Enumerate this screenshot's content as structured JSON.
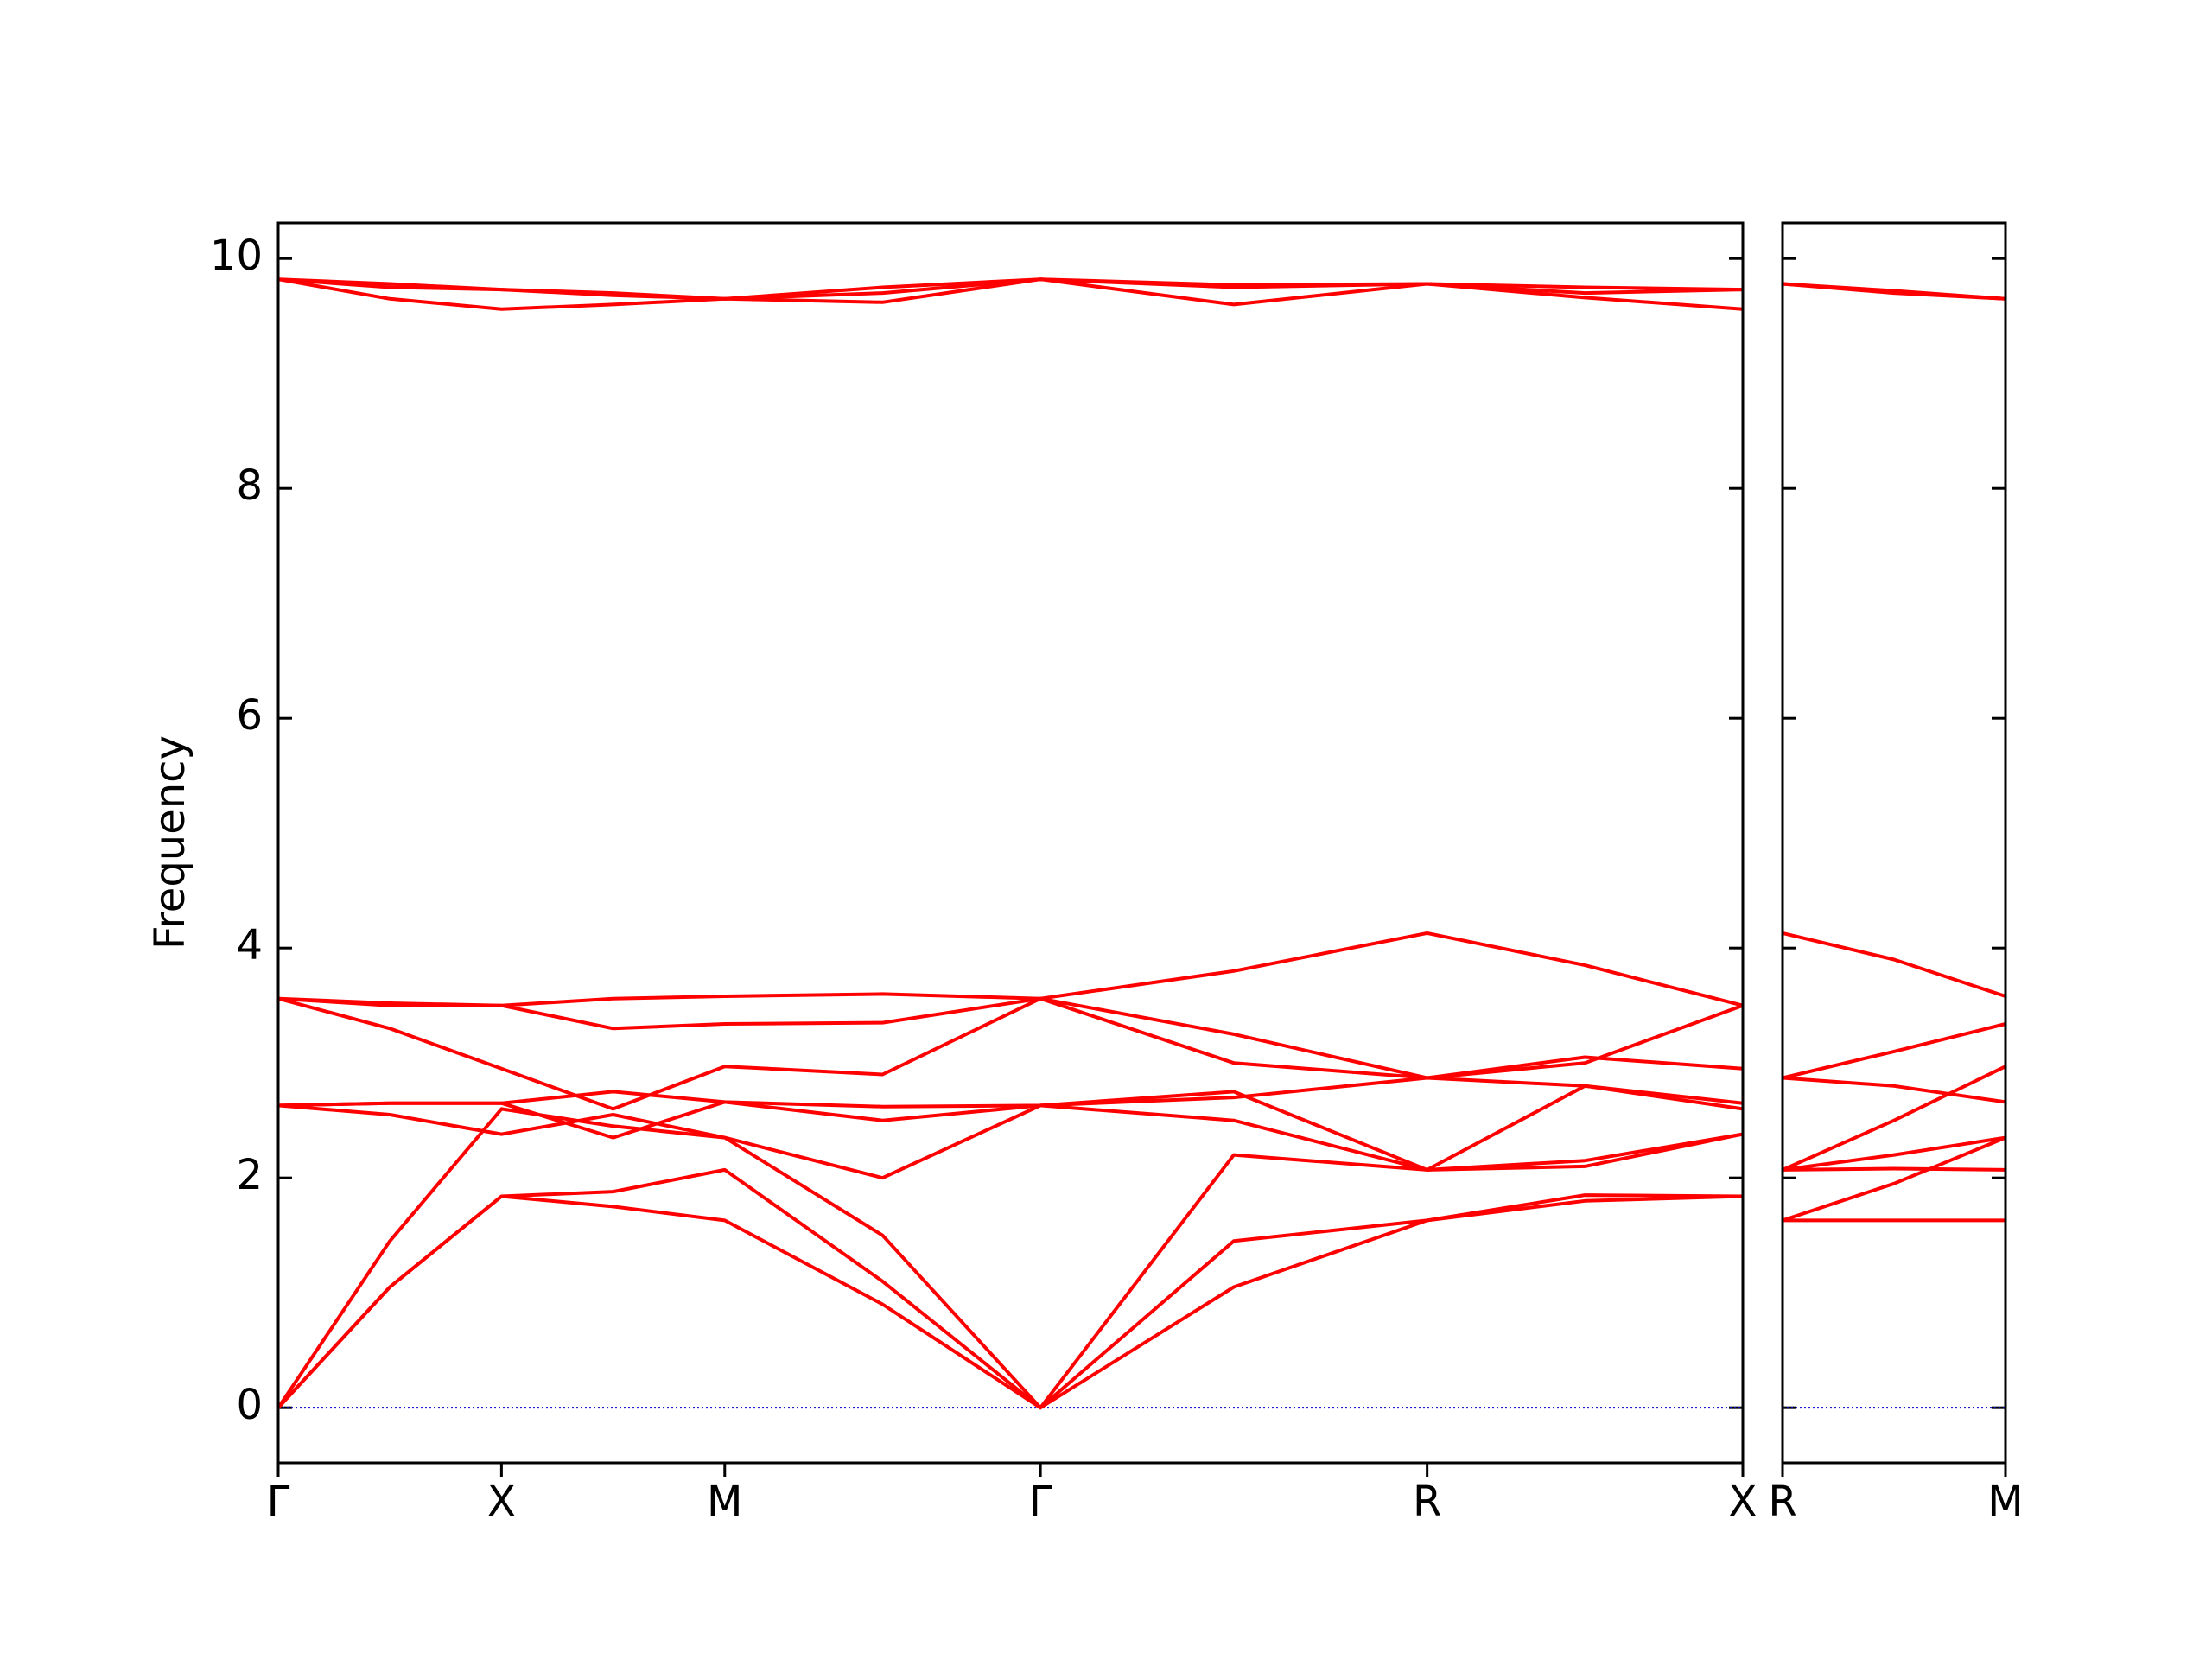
{
  "chart_data": [
    {
      "type": "line",
      "ylabel": "Frequency",
      "color": "#ff0000",
      "zero_line": 0,
      "zero_line_color": "#0000cc",
      "show_ytick_labels": true,
      "x": [
        0,
        0.5,
        1,
        1.5,
        2,
        2.707,
        3.414,
        4.28,
        5.146,
        5.853,
        6.56
      ],
      "xlim": [
        0,
        6.56
      ],
      "ylim": [
        -0.48,
        10.31
      ],
      "yticks": [
        0,
        2,
        4,
        6,
        8,
        10
      ],
      "xticks": [
        {
          "value": 0,
          "label": "Γ"
        },
        {
          "value": 1,
          "label": "X"
        },
        {
          "value": 2,
          "label": "M"
        },
        {
          "value": 3.414,
          "label": "Γ"
        },
        {
          "value": 5.146,
          "label": "R"
        },
        {
          "value": 6.56,
          "label": "X"
        }
      ],
      "series": [
        {
          "values": [
            0,
            1.05,
            1.84,
            1.75,
            1.63,
            0.9,
            0,
            1.05,
            1.63,
            1.8,
            1.84
          ]
        },
        {
          "values": [
            0,
            1.05,
            1.84,
            1.88,
            2.07,
            1.1,
            0,
            1.45,
            1.63,
            1.85,
            1.84
          ]
        },
        {
          "values": [
            0,
            1.45,
            2.6,
            2.45,
            2.35,
            1.5,
            0,
            2.2,
            2.07,
            2.1,
            2.38
          ]
        },
        {
          "values": [
            2.63,
            2.55,
            2.38,
            2.55,
            2.35,
            2.0,
            2.63,
            2.75,
            2.07,
            2.15,
            2.38
          ]
        },
        {
          "values": [
            2.63,
            2.65,
            2.65,
            2.35,
            2.66,
            2.5,
            2.63,
            2.5,
            2.07,
            2.8,
            2.6
          ]
        },
        {
          "values": [
            2.63,
            2.65,
            2.65,
            2.75,
            2.66,
            2.62,
            2.63,
            2.7,
            2.87,
            2.8,
            2.65
          ]
        },
        {
          "values": [
            3.56,
            3.3,
            2.95,
            2.6,
            2.97,
            2.9,
            3.56,
            3.0,
            2.87,
            3.05,
            2.95
          ]
        },
        {
          "values": [
            3.56,
            3.5,
            3.5,
            3.3,
            3.34,
            3.35,
            3.56,
            3.25,
            2.87,
            3.0,
            3.5
          ]
        },
        {
          "values": [
            3.56,
            3.52,
            3.5,
            3.56,
            3.58,
            3.6,
            3.56,
            3.8,
            4.13,
            3.85,
            3.5
          ]
        },
        {
          "values": [
            9.82,
            9.65,
            9.56,
            9.6,
            9.65,
            9.62,
            9.82,
            9.6,
            9.78,
            9.66,
            9.56
          ]
        },
        {
          "values": [
            9.82,
            9.75,
            9.73,
            9.7,
            9.65,
            9.7,
            9.82,
            9.75,
            9.78,
            9.7,
            9.73
          ]
        },
        {
          "values": [
            9.82,
            9.78,
            9.73,
            9.68,
            9.65,
            9.75,
            9.82,
            9.77,
            9.78,
            9.75,
            9.73
          ]
        }
      ]
    },
    {
      "type": "line",
      "color": "#ff0000",
      "zero_line": 0,
      "zero_line_color": "#0000cc",
      "show_ytick_labels": false,
      "x": [
        0,
        0.5,
        1
      ],
      "xlim": [
        0,
        1
      ],
      "ylim": [
        -0.48,
        10.31
      ],
      "yticks": [
        0,
        2,
        4,
        6,
        8,
        10
      ],
      "xticks": [
        {
          "value": 0,
          "label": "R"
        },
        {
          "value": 1,
          "label": "M"
        }
      ],
      "series": [
        {
          "values": [
            1.63,
            1.63,
            1.63
          ]
        },
        {
          "values": [
            1.63,
            1.95,
            2.35
          ]
        },
        {
          "values": [
            2.07,
            2.08,
            2.07
          ]
        },
        {
          "values": [
            2.07,
            2.2,
            2.35
          ]
        },
        {
          "values": [
            2.07,
            2.5,
            2.97
          ]
        },
        {
          "values": [
            2.87,
            2.8,
            2.66
          ]
        },
        {
          "values": [
            2.87,
            3.1,
            3.34
          ]
        },
        {
          "values": [
            4.13,
            3.9,
            3.58
          ]
        },
        {
          "values": [
            9.78,
            9.72,
            9.65
          ]
        },
        {
          "values": [
            9.78,
            9.71,
            9.65
          ]
        },
        {
          "values": [
            9.78,
            9.7,
            9.65
          ]
        }
      ]
    }
  ]
}
